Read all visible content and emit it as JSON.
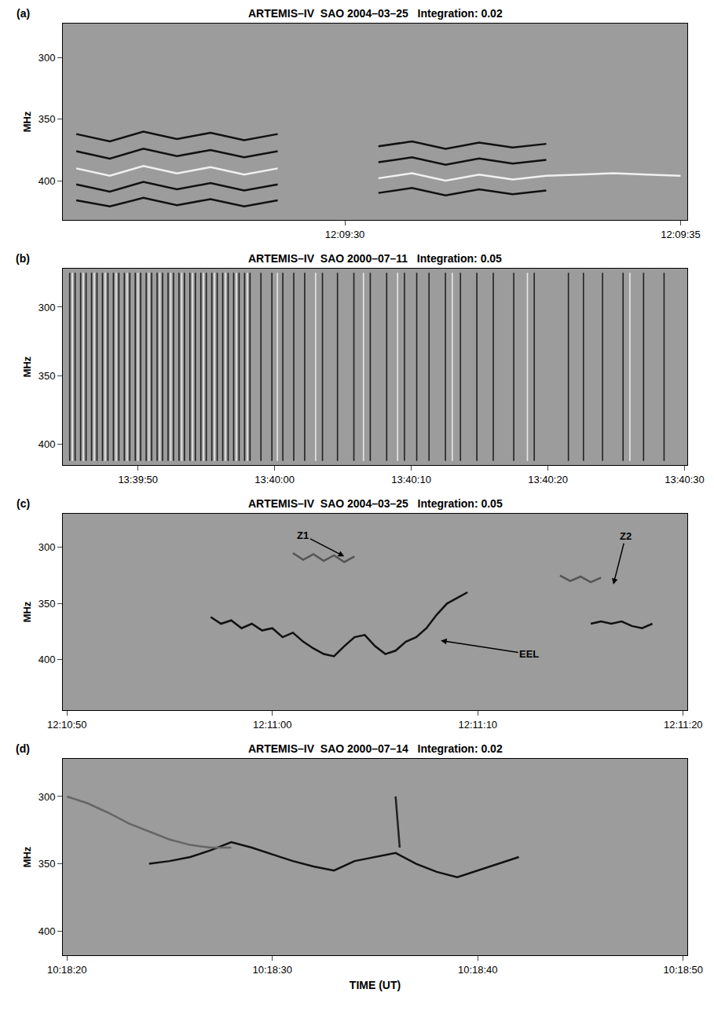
{
  "chart_data": [
    {
      "type": "line",
      "panel_label": "(a)",
      "title": "ARTEMIS–IV  SAO 2004–03–25   Integration: 0.02",
      "ylabel": "MHz",
      "xlim": [
        43765.8,
        43775.1
      ],
      "xticks": [
        {
          "value": 43770,
          "label": "12:09:30"
        },
        {
          "value": 43775,
          "label": "12:09:35"
        }
      ],
      "ylim": [
        432,
        272
      ],
      "yticks": [
        300,
        350,
        400
      ],
      "series": [
        {
          "color": "#111111",
          "x": [
            43766,
            43766.5,
            43767,
            43767.5,
            43768,
            43768.5,
            43769,
            43769.5,
            43770,
            43770.5,
            43771,
            43771.5,
            43772,
            43772.5,
            43773,
            43773.5,
            43774,
            43774.5,
            43775
          ],
          "values": [
            362,
            368,
            360,
            366,
            361,
            367,
            362,
            null,
            null,
            372,
            368,
            374,
            369,
            373,
            370,
            null,
            null,
            null,
            null
          ]
        },
        {
          "color": "#111111",
          "x": [
            43766,
            43766.5,
            43767,
            43767.5,
            43768,
            43768.5,
            43769,
            43769.5,
            43770,
            43770.5,
            43771,
            43771.5,
            43772,
            43772.5,
            43773,
            43773.5,
            43774,
            43774.5,
            43775
          ],
          "values": [
            376,
            382,
            374,
            380,
            375,
            381,
            376,
            null,
            null,
            385,
            381,
            387,
            382,
            386,
            383,
            null,
            null,
            null,
            null
          ]
        },
        {
          "color": "#f0f0f0",
          "x": [
            43766,
            43766.5,
            43767,
            43767.5,
            43768,
            43768.5,
            43769,
            43769.5,
            43770,
            43770.5,
            43771,
            43771.5,
            43772,
            43772.5,
            43773,
            43773.5,
            43774,
            43774.5,
            43775
          ],
          "values": [
            390,
            396,
            388,
            394,
            389,
            395,
            390,
            null,
            null,
            398,
            394,
            400,
            395,
            399,
            396,
            395,
            394,
            395,
            396
          ]
        },
        {
          "color": "#111111",
          "x": [
            43766,
            43766.5,
            43767,
            43767.5,
            43768,
            43768.5,
            43769,
            43769.5,
            43770,
            43770.5,
            43771,
            43771.5,
            43772,
            43772.5,
            43773,
            43773.5,
            43774,
            43774.5,
            43775
          ],
          "values": [
            403,
            409,
            401,
            407,
            402,
            408,
            403,
            null,
            null,
            410,
            406,
            412,
            407,
            411,
            408,
            null,
            null,
            null,
            null
          ]
        },
        {
          "color": "#111111",
          "x": [
            43766,
            43766.5,
            43767,
            43767.5,
            43768,
            43768.5,
            43769,
            43769.5,
            43770,
            43770.5,
            43771,
            43771.5,
            43772,
            43772.5,
            43773,
            43773.5,
            43774,
            43774.5,
            43775
          ],
          "values": [
            416,
            421,
            414,
            420,
            415,
            421,
            416,
            null,
            null,
            null,
            null,
            null,
            null,
            null,
            null,
            null,
            null,
            null,
            null
          ]
        }
      ]
    },
    {
      "type": "line",
      "panel_label": "(b)",
      "title": "ARTEMIS–IV  SAO 2000–07–11   Integration: 0.05",
      "ylabel": "MHz",
      "xlim": [
        49184.5,
        49230.2
      ],
      "xticks": [
        {
          "value": 49190,
          "label": "13:39:50"
        },
        {
          "value": 49200,
          "label": "13:40:00"
        },
        {
          "value": 49210,
          "label": "13:40:10"
        },
        {
          "value": 49220,
          "label": "13:40:20"
        },
        {
          "value": 49230,
          "label": "13:40:30"
        }
      ],
      "ylim": [
        415,
        272
      ],
      "yticks": [
        300,
        350,
        400
      ],
      "series": [
        {
          "type": "vlines",
          "color": "#222222",
          "span": [
            275,
            412
          ],
          "x": [
            49185.0,
            49185.4,
            49185.8,
            49186.2,
            49186.6,
            49187.0,
            49187.4,
            49187.8,
            49188.2,
            49188.6,
            49189.0,
            49189.4,
            49189.8,
            49190.2,
            49190.6,
            49191.0,
            49191.4,
            49191.8,
            49192.2,
            49192.6,
            49193.0,
            49193.4,
            49193.8,
            49194.2,
            49194.6,
            49195.0,
            49195.4,
            49195.8,
            49196.2,
            49196.6,
            49197.0,
            49197.4,
            49197.8,
            49198.2,
            49199.0,
            49199.8,
            49200.6,
            49201.4,
            49202.2,
            49203.5,
            49204.6,
            49205.8,
            49207.0,
            49208.2,
            49209.5,
            49210.4,
            49211.3,
            49212.5,
            49213.6,
            49214.8,
            49216.0,
            49217.5,
            49219.0,
            49221.5,
            49222.6,
            49224.0,
            49225.5,
            49227.0,
            49228.5
          ]
        },
        {
          "type": "vlines",
          "color": "#e8e8e8",
          "span": [
            275,
            412
          ],
          "x": [
            49185.2,
            49186.0,
            49186.8,
            49187.6,
            49188.4,
            49189.2,
            49190.0,
            49190.8,
            49191.6,
            49192.4,
            49193.2,
            49194.0,
            49194.8,
            49195.6,
            49196.4,
            49197.2,
            49198.0,
            49200.2,
            49203.0,
            49206.5,
            49209.0,
            49213.0,
            49218.5,
            49226.0
          ]
        }
      ]
    },
    {
      "type": "line",
      "panel_label": "(c)",
      "title": "ARTEMIS–IV  SAO 2004–03–25   Integration: 0.05",
      "ylabel": "MHz",
      "xlim": [
        43849.8,
        43880.2
      ],
      "xticks": [
        {
          "value": 43850,
          "label": "12:10:50"
        },
        {
          "value": 43860,
          "label": "12:11:00"
        },
        {
          "value": 43870,
          "label": "12:11:10"
        },
        {
          "value": 43880,
          "label": "12:11:20"
        }
      ],
      "ylim": [
        445,
        270
      ],
      "yticks": [
        300,
        350,
        400
      ],
      "series": [
        {
          "color": "#111111",
          "x": [
            43857,
            43857.5,
            43858,
            43858.5,
            43859,
            43859.5,
            43860,
            43860.5,
            43861,
            43861.5,
            43862,
            43862.5,
            43863,
            43863.5,
            43864,
            43864.5,
            43865,
            43865.5,
            43866,
            43866.5,
            43867,
            43867.5,
            43868,
            43868.5,
            43869,
            43869.5
          ],
          "values": [
            362,
            368,
            365,
            372,
            368,
            374,
            372,
            380,
            376,
            384,
            390,
            395,
            397,
            388,
            380,
            378,
            388,
            395,
            392,
            384,
            380,
            372,
            360,
            350,
            345,
            340
          ]
        },
        {
          "color": "#111111",
          "x": [
            43875.5,
            43876,
            43876.5,
            43877,
            43877.5,
            43878,
            43878.5
          ],
          "values": [
            368,
            366,
            368,
            366,
            370,
            372,
            368
          ]
        },
        {
          "color": "#555555",
          "x": [
            43861,
            43861.5,
            43862,
            43862.5,
            43863,
            43863.5,
            43864
          ],
          "values": [
            305,
            311,
            306,
            312,
            307,
            313,
            308
          ]
        },
        {
          "color": "#555555",
          "x": [
            43874,
            43874.5,
            43875,
            43875.5,
            43876
          ],
          "values": [
            325,
            330,
            326,
            331,
            327
          ]
        }
      ],
      "annotations": [
        {
          "text": "Z1",
          "x": 43863.5,
          "y": 308,
          "text_x": 43861.5,
          "text_y": 289
        },
        {
          "text": "Z2",
          "x": 43876.6,
          "y": 333,
          "text_x": 43877.2,
          "text_y": 290
        },
        {
          "text": "EEL",
          "x": 43868.2,
          "y": 383,
          "text_x": 43872.5,
          "text_y": 395
        }
      ]
    },
    {
      "type": "line",
      "panel_label": "(d)",
      "title": "ARTEMIS–IV  SAO 2000–07–14   Integration: 0.02",
      "ylabel": "MHz",
      "xlabel": "TIME (UT)",
      "xlim": [
        37099.8,
        37130.2
      ],
      "xticks": [
        {
          "value": 37100,
          "label": "10:18:20"
        },
        {
          "value": 37110,
          "label": "10:18:30"
        },
        {
          "value": 37120,
          "label": "10:18:40"
        },
        {
          "value": 37130,
          "label": "10:18:50"
        }
      ],
      "ylim": [
        418,
        272
      ],
      "yticks": [
        300,
        350,
        400
      ],
      "series": [
        {
          "color": "#111111",
          "x": [
            37104,
            37105,
            37106,
            37107,
            37108,
            37109,
            37110,
            37111,
            37112,
            37113,
            37114,
            37115,
            37116,
            37117,
            37118,
            37119,
            37120,
            37121,
            37122
          ],
          "values": [
            350,
            348,
            345,
            340,
            334,
            338,
            343,
            348,
            352,
            355,
            348,
            345,
            342,
            350,
            356,
            360,
            355,
            350,
            345
          ]
        },
        {
          "color": "#666666",
          "x": [
            37100,
            37101,
            37102,
            37103,
            37104,
            37105,
            37106,
            37107,
            37108
          ],
          "values": [
            300,
            305,
            312,
            320,
            326,
            332,
            336,
            338,
            338
          ]
        },
        {
          "color": "#222222",
          "x": [
            37116,
            37116.2
          ],
          "values": [
            300,
            338
          ]
        }
      ]
    }
  ]
}
